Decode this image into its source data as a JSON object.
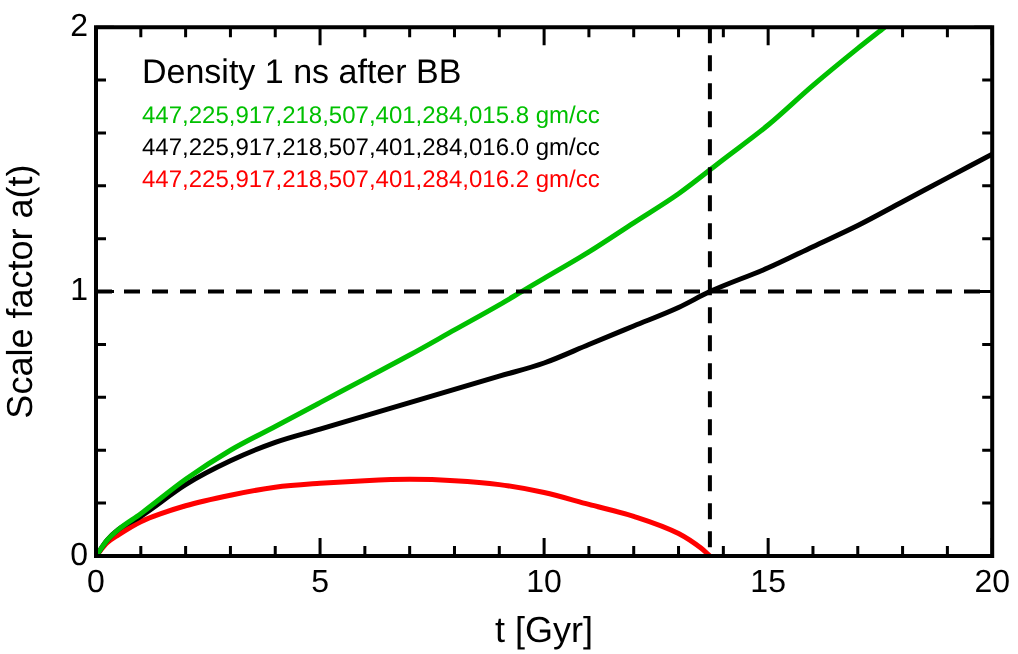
{
  "chart_data": {
    "type": "line",
    "xlabel": "t [Gyr]",
    "ylabel": "Scale factor a(t)",
    "legend_title": "Density 1 ns after BB",
    "legend": "top left",
    "marker": "none",
    "line_style": "solid",
    "xlim": [
      0,
      20
    ],
    "ylim": [
      0,
      2
    ],
    "xticks": [
      0,
      {
        "value": 1,
        "label": null
      },
      {
        "value": 2,
        "label": null
      },
      {
        "value": 3,
        "label": null
      },
      {
        "value": 4,
        "label": null
      },
      5,
      {
        "value": 6,
        "label": null
      },
      {
        "value": 7,
        "label": null
      },
      {
        "value": 8,
        "label": null
      },
      {
        "value": 9,
        "label": null
      },
      10,
      {
        "value": 11,
        "label": null
      },
      {
        "value": 12,
        "label": null
      },
      {
        "value": 13,
        "label": null
      },
      {
        "value": 14,
        "label": null
      },
      15,
      {
        "value": 16,
        "label": null
      },
      {
        "value": 17,
        "label": null
      },
      {
        "value": 18,
        "label": null
      },
      {
        "value": 19,
        "label": null
      },
      20
    ],
    "yticks": [
      0,
      {
        "value": 0.2,
        "label": null
      },
      {
        "value": 0.4,
        "label": null
      },
      {
        "value": 0.6,
        "label": null
      },
      {
        "value": 0.8,
        "label": null
      },
      1,
      {
        "value": 1.2,
        "label": null
      },
      {
        "value": 1.4,
        "label": null
      },
      {
        "value": 1.6,
        "label": null
      },
      {
        "value": 1.8,
        "label": null
      },
      2
    ],
    "ref_lines": [
      {
        "axis": "y",
        "value": 1,
        "color": "#000000",
        "line_style": "dashed"
      },
      {
        "axis": "x",
        "value": 13.7,
        "color": "#000000",
        "line_style": "dashed"
      }
    ],
    "series": [
      {
        "name": "447,225,917,218,507,401,284,015.8 gm/cc",
        "color": "#00c000",
        "x": [
          0,
          0.25,
          0.5,
          1,
          2,
          3,
          4,
          5,
          6,
          7,
          8,
          9,
          9.5,
          10,
          11,
          12,
          13,
          14,
          15,
          16,
          17,
          17.6
        ],
        "values": [
          0,
          0.06,
          0.1,
          0.16,
          0.29,
          0.4,
          0.49,
          0.58,
          0.67,
          0.76,
          0.855,
          0.95,
          1.0,
          1.05,
          1.15,
          1.26,
          1.37,
          1.5,
          1.63,
          1.78,
          1.92,
          2.0
        ]
      },
      {
        "name": "447,225,917,218,507,401,284,016.0 gm/cc",
        "color": "#000000",
        "x": [
          0,
          0.25,
          0.5,
          1,
          2,
          3,
          4,
          5,
          6,
          7,
          8,
          9,
          10,
          11,
          12,
          13,
          13.7,
          15,
          16,
          17,
          18,
          19,
          20
        ],
        "values": [
          0,
          0.06,
          0.1,
          0.15,
          0.27,
          0.36,
          0.43,
          0.48,
          0.53,
          0.58,
          0.63,
          0.68,
          0.73,
          0.8,
          0.87,
          0.94,
          1.0,
          1.09,
          1.17,
          1.25,
          1.34,
          1.43,
          1.52
        ]
      },
      {
        "name": "447,225,917,218,507,401,284,016.2 gm/cc",
        "color": "#ff0000",
        "x": [
          0,
          0.25,
          0.5,
          1,
          2,
          3,
          4,
          5,
          6,
          7,
          8,
          9,
          10,
          11,
          12,
          13,
          13.5,
          13.7
        ],
        "values": [
          0,
          0.05,
          0.08,
          0.13,
          0.19,
          0.23,
          0.26,
          0.275,
          0.285,
          0.29,
          0.285,
          0.27,
          0.24,
          0.195,
          0.15,
          0.085,
          0.03,
          0
        ]
      }
    ]
  }
}
